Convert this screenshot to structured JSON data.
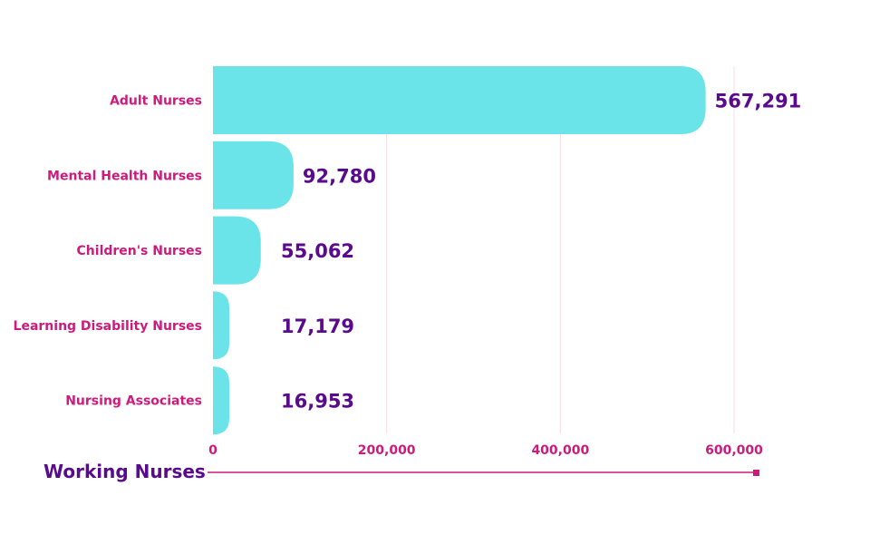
{
  "chart_data": {
    "type": "bar",
    "orientation": "horizontal",
    "categories": [
      "Adult Nurses",
      "Mental Health Nurses",
      "Children's Nurses",
      "Learning Disability Nurses",
      "Nursing Associates"
    ],
    "values": [
      567291,
      92780,
      55062,
      17179,
      16953
    ],
    "value_labels": [
      "567,291",
      "92,780",
      "55,062",
      "17,179",
      "16,953"
    ],
    "xticks": [
      0,
      200000,
      400000,
      600000
    ],
    "xtick_labels": [
      "0",
      "200,000",
      "400,000",
      "600,000"
    ],
    "xlim": [
      0,
      600000
    ],
    "xlabel": "Working Nurses",
    "grid": "vertical",
    "legend": "none"
  },
  "colors": {
    "bar": "#6ae4e9",
    "category_text": "#cc1b7d",
    "value_text": "#5a0a8c",
    "tick_text": "#cc1b7d",
    "axis_title": "#5a0a8c",
    "axis_line": "#cc1b7d",
    "grid": "#f6dbe8"
  }
}
